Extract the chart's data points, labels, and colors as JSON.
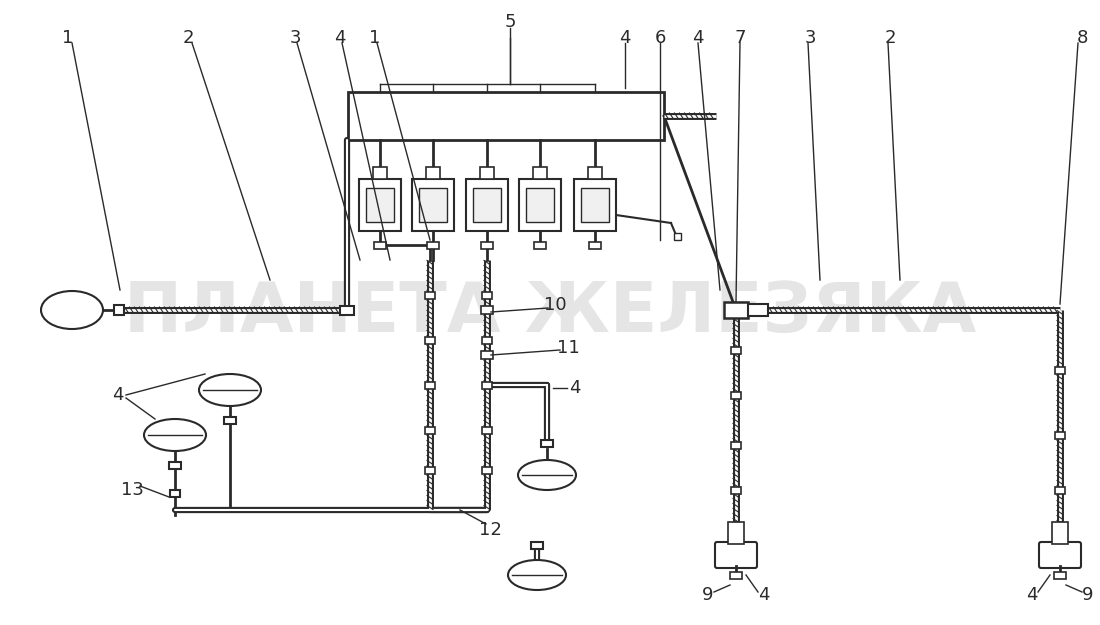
{
  "bg_color": "#ffffff",
  "line_color": "#2a2a2a",
  "watermark_text": "ПЛАНЕТА ЖЕЛЕЗЯКА",
  "watermark_color": "#d0d0d0",
  "watermark_alpha": 0.55,
  "figsize": [
    11.0,
    6.25
  ],
  "dpi": 100
}
